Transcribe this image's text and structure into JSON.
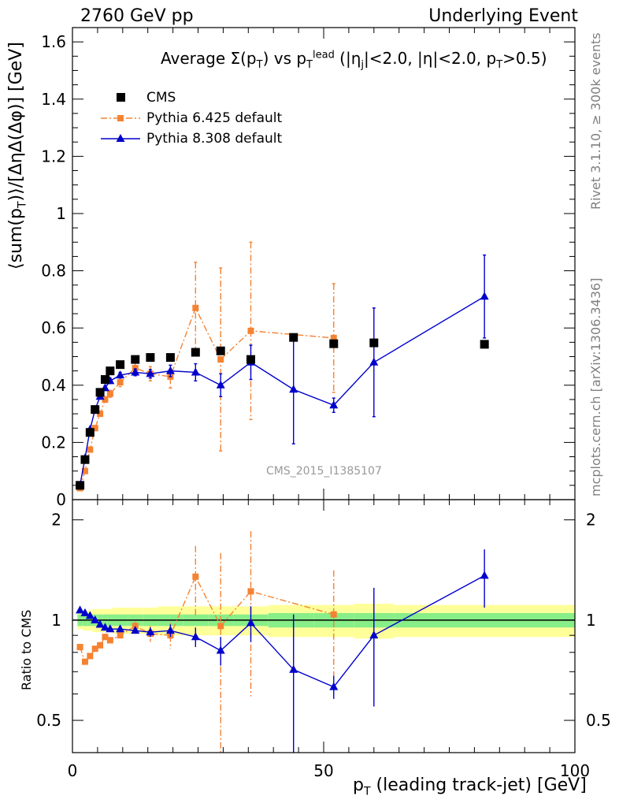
{
  "header": {
    "left": "2760 GeV pp",
    "right": "Underlying Event",
    "side_top": "Rivet 3.1.10, ≥ 300k events",
    "side_bottom": "mcplots.cern.ch [arXiv:1306.3436]",
    "watermark": "CMS_2015_I1385107"
  },
  "title": {
    "a": "Average Σ(p",
    "a_sub": "T",
    "b": ") vs p",
    "b_sub": "T",
    "b_sup": "lead",
    "c": " (|η",
    "c_sub": "j",
    "d": "|<2.0, |η|<2.0, p",
    "d_sub": "T",
    "e": ">0.5)"
  },
  "legend": {
    "cms": "CMS",
    "p6": "Pythia 6.425 default",
    "p8": "Pythia 8.308 default"
  },
  "axes": {
    "ylabel_a": "⟨sum(p",
    "ylabel_sub": "T",
    "ylabel_b": ")⟩/[ΔηΔ(Δφ)] [GeV]",
    "xlabel_a": "p",
    "xlabel_sub": "T",
    "xlabel_b": " (leading track-jet) [GeV]",
    "ratio_ylabel": "Ratio to CMS"
  },
  "colors": {
    "cms": "#000000",
    "p6": "#f58231",
    "p8": "#0000cc",
    "band_inner": "#88ee88",
    "band_outer": "#ffff99"
  },
  "chart_data": {
    "type": "scatter",
    "xlim": [
      0,
      100
    ],
    "main": {
      "ylim": [
        0,
        1.65
      ],
      "yticks": [
        0,
        0.2,
        0.4,
        0.6,
        0.8,
        1,
        1.2,
        1.4,
        1.6
      ],
      "ytick_labels": [
        "0",
        "0.2",
        "0.4",
        "0.6",
        "0.8",
        "1",
        "1.2",
        "1.4",
        "1.6"
      ]
    },
    "ratio": {
      "ylim": [
        0.4,
        2.3
      ],
      "log": true,
      "yticks": [
        0.5,
        1,
        2
      ],
      "ytick_labels": [
        "0.5",
        "1",
        "2"
      ]
    },
    "xticks": [
      0,
      50,
      100
    ],
    "xtick_labels": [
      "0",
      "50",
      "100"
    ],
    "series": [
      {
        "name": "CMS",
        "x": [
          1.5,
          2.5,
          3.5,
          4.5,
          5.5,
          6.5,
          7.5,
          9.5,
          12.5,
          15.5,
          19.5,
          24.5,
          29.5,
          35.5,
          44,
          52,
          60,
          82
        ],
        "y": [
          0.05,
          0.14,
          0.235,
          0.315,
          0.375,
          0.42,
          0.45,
          0.472,
          0.49,
          0.497,
          0.497,
          0.515,
          0.52,
          0.49,
          0.567,
          0.545,
          0.548,
          0.543
        ]
      },
      {
        "name": "Pythia 6.425 default",
        "x": [
          1.5,
          2.5,
          3.5,
          4.5,
          5.5,
          6.5,
          7.5,
          9.5,
          12.5,
          15.5,
          19.5,
          24.5,
          29.5,
          35.5,
          52
        ],
        "y": [
          0.04,
          0.1,
          0.175,
          0.25,
          0.3,
          0.35,
          0.37,
          0.41,
          0.46,
          0.44,
          0.43,
          0.67,
          0.49,
          0.59,
          0.565
        ],
        "err": [
          0.003,
          0.004,
          0.005,
          0.006,
          0.008,
          0.01,
          0.012,
          0.015,
          0.02,
          0.025,
          0.04,
          0.16,
          0.32,
          0.31,
          0.19
        ],
        "ratio": [
          0.83,
          0.75,
          0.78,
          0.82,
          0.84,
          0.89,
          0.87,
          0.9,
          0.96,
          0.91,
          0.9,
          1.35,
          0.96,
          1.22,
          1.04
        ],
        "ratio_err": [
          0.01,
          0.01,
          0.01,
          0.01,
          0.02,
          0.02,
          0.02,
          0.02,
          0.03,
          0.05,
          0.08,
          0.32,
          0.63,
          0.63,
          0.37
        ]
      },
      {
        "name": "Pythia 8.308 default",
        "x": [
          1.5,
          2.5,
          3.5,
          4.5,
          5.5,
          6.5,
          7.5,
          9.5,
          12.5,
          15.5,
          19.5,
          24.5,
          29.5,
          35.5,
          44,
          52,
          60,
          82
        ],
        "y": [
          0.05,
          0.145,
          0.245,
          0.315,
          0.36,
          0.39,
          0.415,
          0.435,
          0.445,
          0.44,
          0.45,
          0.445,
          0.4,
          0.48,
          0.385,
          0.33,
          0.48,
          0.71
        ],
        "err": [
          0.003,
          0.004,
          0.005,
          0.006,
          0.007,
          0.008,
          0.009,
          0.01,
          0.012,
          0.015,
          0.02,
          0.03,
          0.04,
          0.06,
          0.19,
          0.025,
          0.19,
          0.145
        ],
        "ratio": [
          1.07,
          1.05,
          1.03,
          1.0,
          0.97,
          0.95,
          0.94,
          0.94,
          0.93,
          0.92,
          0.93,
          0.89,
          0.81,
          0.98,
          0.71,
          0.63,
          0.9,
          1.36
        ],
        "ratio_err": [
          0.01,
          0.01,
          0.01,
          0.01,
          0.01,
          0.01,
          0.01,
          0.02,
          0.02,
          0.03,
          0.04,
          0.06,
          0.08,
          0.12,
          0.33,
          0.05,
          0.35,
          0.27
        ]
      }
    ],
    "ratio_band": {
      "x_edges": [
        1,
        2,
        3,
        4,
        5,
        6,
        7,
        8,
        11,
        14,
        17,
        22,
        27,
        32,
        39,
        48,
        56,
        64,
        100
      ],
      "inner": [
        0.04,
        0.04,
        0.04,
        0.04,
        0.04,
        0.04,
        0.04,
        0.04,
        0.04,
        0.04,
        0.04,
        0.04,
        0.04,
        0.04,
        0.05,
        0.05,
        0.05,
        0.05
      ],
      "outer": [
        0.06,
        0.07,
        0.07,
        0.08,
        0.08,
        0.08,
        0.08,
        0.09,
        0.09,
        0.09,
        0.1,
        0.1,
        0.1,
        0.1,
        0.11,
        0.11,
        0.12,
        0.11
      ]
    }
  }
}
